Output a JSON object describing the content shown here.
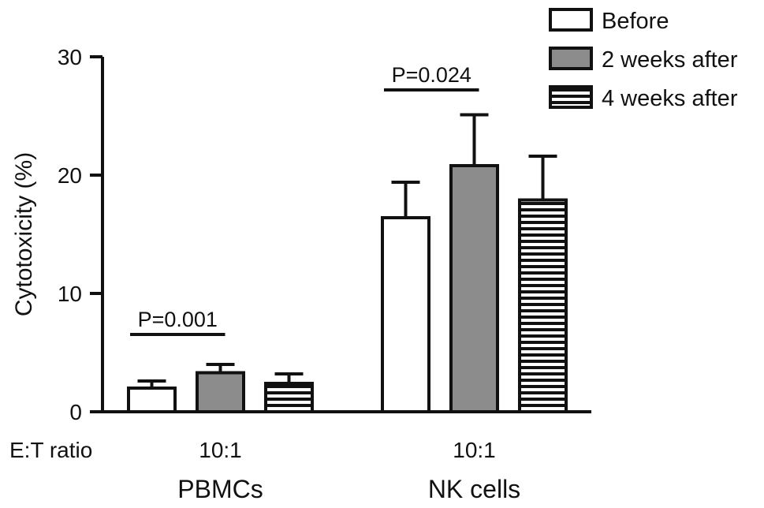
{
  "chart_data": {
    "type": "bar",
    "title": "",
    "ylabel": "Cytotoxicity (%)",
    "xlabel": "",
    "ylim": [
      0,
      30
    ],
    "yticks": [
      0,
      10,
      20,
      30
    ],
    "et_label": "E:T ratio",
    "groups": [
      {
        "name": "PBMCs",
        "ratio": "10:1"
      },
      {
        "name": "NK cells",
        "ratio": "10:1"
      }
    ],
    "series": [
      {
        "name": "Before",
        "fill": "white",
        "values": [
          2.0,
          16.4
        ],
        "errors": [
          0.6,
          3.0
        ]
      },
      {
        "name": "2 weeks after",
        "fill": "gray",
        "values": [
          3.3,
          20.8
        ],
        "errors": [
          0.7,
          4.3
        ]
      },
      {
        "name": "4 weeks after",
        "fill": "stripes",
        "values": [
          2.4,
          17.9
        ],
        "errors": [
          0.8,
          3.7
        ]
      }
    ],
    "annotations": [
      {
        "text": "P=0.001",
        "group": 0,
        "from": 0,
        "to": 1
      },
      {
        "text": "P=0.024",
        "group": 1,
        "from": 0,
        "to": 1
      }
    ],
    "legend_position": "top-right",
    "colors": {
      "gray": "#8c8c8c",
      "line": "#111111",
      "white": "#ffffff"
    }
  }
}
